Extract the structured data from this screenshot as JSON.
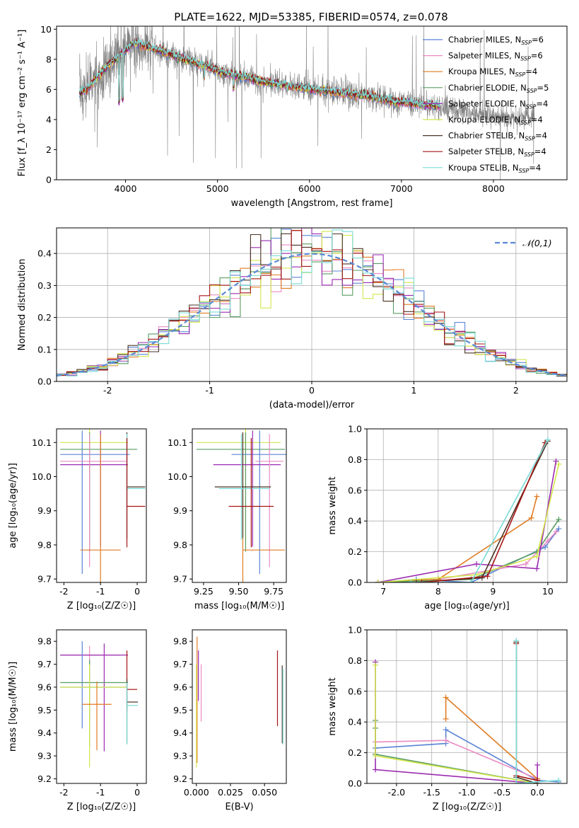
{
  "title": "PLATE=1622, MJD=53385, FIBERID=0574, z=0.078",
  "colors": {
    "Chabrier MILES": "#5b84d6",
    "Salpeter MILES": "#e98bc3",
    "Kroupa MILES": "#e07c24",
    "Chabrier ELODIE": "#5a9d63",
    "Salpeter ELODIE": "#9a2ab0",
    "Kroupa ELODIE": "#d4e64b",
    "Chabrier STELIB": "#4a3324",
    "Salpeter STELIB": "#a51515",
    "Kroupa STELIB": "#78dbd6",
    "data": "#808080"
  },
  "chart_data": [
    {
      "id": "spectrum",
      "type": "line",
      "xlabel": "wavelength [Angstrom, rest frame]",
      "ylabel": "Flux [f_λ 10⁻¹⁷ erg cm⁻² s⁻¹ A⁻¹]",
      "xlim": [
        3250,
        8800
      ],
      "ylim": [
        0,
        10.2
      ],
      "xticks": [
        4000,
        5000,
        6000,
        7000,
        8000
      ],
      "yticks": [
        0,
        2,
        4,
        6,
        8,
        10
      ],
      "legend": "top-right",
      "legend_entries": [
        {
          "name": "Chabrier MILES",
          "nssp": "6"
        },
        {
          "name": "Salpeter MILES",
          "nssp": "6"
        },
        {
          "name": "Kroupa MILES",
          "nssp": "4"
        },
        {
          "name": "Chabrier ELODIE",
          "nssp": "5"
        },
        {
          "name": "Salpeter ELODIE",
          "nssp": "4"
        },
        {
          "name": "Kroupa ELODIE",
          "nssp": "4"
        },
        {
          "name": "Chabrier STELIB",
          "nssp": "4"
        },
        {
          "name": "Salpeter STELIB",
          "nssp": "4"
        },
        {
          "name": "Kroupa STELIB",
          "nssp": "4"
        }
      ],
      "continuum": [
        [
          3500,
          5.8
        ],
        [
          3600,
          6.1
        ],
        [
          3700,
          6.8
        ],
        [
          3800,
          7.5
        ],
        [
          3900,
          8.0
        ],
        [
          4000,
          8.6
        ],
        [
          4100,
          9.1
        ],
        [
          4200,
          8.9
        ],
        [
          4300,
          8.7
        ],
        [
          4500,
          8.3
        ],
        [
          4700,
          7.9
        ],
        [
          4900,
          7.5
        ],
        [
          5100,
          7.0
        ],
        [
          5300,
          6.8
        ],
        [
          5500,
          6.5
        ],
        [
          5700,
          6.3
        ],
        [
          6000,
          6.0
        ],
        [
          6300,
          5.8
        ],
        [
          6600,
          5.6
        ],
        [
          6900,
          5.2
        ],
        [
          7200,
          5.0
        ],
        [
          7400,
          4.9
        ],
        [
          7600,
          4.6
        ],
        [
          7800,
          4.4
        ],
        [
          8000,
          4.2
        ],
        [
          8200,
          4.1
        ],
        [
          8400,
          4.2
        ]
      ],
      "model_range": [
        3500,
        7420
      ]
    },
    {
      "id": "residuals",
      "type": "step",
      "xlabel": "(data-model)/error",
      "ylabel": "Normed distribution",
      "xlim": [
        -2.5,
        2.5
      ],
      "ylim": [
        0,
        0.48
      ],
      "xticks": [
        -2,
        -1,
        0,
        1,
        2
      ],
      "yticks": [
        0.0,
        0.1,
        0.2,
        0.3,
        0.4
      ],
      "gauss_label": "𝒩(0,1)",
      "bin_width": 0.1
    },
    {
      "id": "age-vs-Z",
      "type": "errorbar",
      "xlabel": "Z [log₁₀(Z/Z☉)]",
      "ylabel": "age  [log₁₀(age/yr)]",
      "xlim": [
        -2.2,
        0.25
      ],
      "ylim": [
        9.69,
        10.14
      ],
      "xticks": [
        -2,
        -1,
        0
      ],
      "yticks": [
        9.7,
        9.8,
        9.9,
        10.0,
        10.1
      ],
      "points": [
        {
          "m": "Kroupa ELODIE",
          "x": -1.3,
          "xerr": [
            0.8,
            1.05
          ],
          "y": 10.1,
          "yerr": [
            0.3,
            0.05
          ]
        },
        {
          "m": "Chabrier MILES",
          "x": -1.5,
          "xerr": [
            0.6,
            1.3
          ],
          "y": 10.065,
          "yerr": [
            0.35,
            0.07
          ]
        },
        {
          "m": "Chabrier ELODIE",
          "x": -1.3,
          "xerr": [
            0.8,
            1.3
          ],
          "y": 10.08,
          "yerr": [
            0.3,
            0.05
          ]
        },
        {
          "m": "Salpeter ELODIE",
          "x": -1.0,
          "xerr": [
            1.1,
            0.75
          ],
          "y": 10.035,
          "yerr": [
            0.24,
            0.1
          ]
        },
        {
          "m": "Salpeter MILES",
          "x": -1.3,
          "xerr": [
            0.8,
            1.0
          ],
          "y": 10.045,
          "yerr": [
            0.31,
            0.08
          ]
        },
        {
          "m": "Kroupa MILES",
          "x": -1.0,
          "xerr": [
            0.55,
            0.55
          ],
          "y": 9.785,
          "yerr": [
            0.1,
            0.34
          ]
        },
        {
          "m": "Chabrier STELIB",
          "x": -0.28,
          "xerr": [
            0.0,
            0.5
          ],
          "y": 9.97,
          "yerr": [
            0.15,
            0.16
          ]
        },
        {
          "m": "Kroupa STELIB",
          "x": -0.28,
          "xerr": [
            0.0,
            0.5
          ],
          "y": 9.965,
          "yerr": [
            0.15,
            0.16
          ]
        },
        {
          "m": "Salpeter STELIB",
          "x": -0.28,
          "xerr": [
            0.0,
            0.5
          ],
          "y": 9.913,
          "yerr": [
            0.12,
            0.2
          ]
        }
      ]
    },
    {
      "id": "age-vs-mass",
      "type": "errorbar",
      "xlabel": "mass [log₁₀(M/M☉)]",
      "xlim": [
        9.17,
        9.84
      ],
      "ylim": [
        9.69,
        10.14
      ],
      "xticks": [
        9.25,
        9.5,
        9.75
      ],
      "yticks": [
        9.7,
        9.8,
        9.9,
        10.0,
        10.1
      ],
      "points": [
        {
          "m": "Kroupa ELODIE",
          "x": 9.55,
          "xerr": [
            0.35,
            0.25
          ],
          "y": 10.1,
          "yerr": [
            0.3,
            0.05
          ]
        },
        {
          "m": "Chabrier ELODIE",
          "x": 9.55,
          "xerr": [
            0.35,
            0.28
          ],
          "y": 10.08,
          "yerr": [
            0.3,
            0.05
          ]
        },
        {
          "m": "Chabrier MILES",
          "x": 9.65,
          "xerr": [
            0.2,
            0.2
          ],
          "y": 10.065,
          "yerr": [
            0.35,
            0.07
          ]
        },
        {
          "m": "Salpeter ELODIE",
          "x": 9.6,
          "xerr": [
            0.28,
            0.2
          ],
          "y": 10.035,
          "yerr": [
            0.24,
            0.1
          ]
        },
        {
          "m": "Salpeter MILES",
          "x": 9.72,
          "xerr": [
            0.1,
            0.1
          ],
          "y": 10.045,
          "yerr": [
            0.31,
            0.08
          ]
        },
        {
          "m": "Kroupa MILES",
          "x": 9.53,
          "xerr": [
            0.0,
            0.3
          ],
          "y": 9.785,
          "yerr": [
            0.1,
            0.34
          ]
        },
        {
          "m": "Chabrier STELIB",
          "x": 9.53,
          "xerr": [
            0.2,
            0.2
          ],
          "y": 9.97,
          "yerr": [
            0.15,
            0.16
          ]
        },
        {
          "m": "Kroupa STELIB",
          "x": 9.52,
          "xerr": [
            0.16,
            0.2
          ],
          "y": 9.965,
          "yerr": [
            0.15,
            0.16
          ]
        },
        {
          "m": "Salpeter STELIB",
          "x": 9.59,
          "xerr": [
            0.16,
            0.16
          ],
          "y": 9.913,
          "yerr": [
            0.12,
            0.2
          ]
        }
      ]
    },
    {
      "id": "weight-vs-age",
      "type": "line",
      "xlabel": "age  [log₁₀(age/yr)]",
      "ylabel": "mass weight",
      "xlim": [
        6.7,
        10.35
      ],
      "ylim": [
        0,
        1.0
      ],
      "xticks": [
        7,
        8,
        9,
        10
      ],
      "yticks": [
        0.0,
        0.2,
        0.4,
        0.6,
        0.8,
        1.0
      ],
      "series": [
        {
          "m": "Chabrier MILES",
          "points": [
            [
              6.9,
              0.0
            ],
            [
              7.6,
              0.02
            ],
            [
              8.6,
              0.0
            ],
            [
              9.95,
              0.23
            ],
            [
              10.2,
              0.35
            ]
          ]
        },
        {
          "m": "Salpeter MILES",
          "points": [
            [
              6.9,
              0.0
            ],
            [
              8.0,
              0.02
            ],
            [
              9.6,
              0.12
            ],
            [
              10.0,
              0.27
            ],
            [
              10.15,
              0.33
            ]
          ]
        },
        {
          "m": "Kroupa MILES",
          "points": [
            [
              6.9,
              0.0
            ],
            [
              8.0,
              0.02
            ],
            [
              9.7,
              0.42
            ],
            [
              9.8,
              0.56
            ]
          ]
        },
        {
          "m": "Chabrier ELODIE",
          "points": [
            [
              6.9,
              0.0
            ],
            [
              8.6,
              0.02
            ],
            [
              9.8,
              0.2
            ],
            [
              10.2,
              0.41
            ]
          ]
        },
        {
          "m": "Salpeter ELODIE",
          "points": [
            [
              6.9,
              0.0
            ],
            [
              8.7,
              0.12
            ],
            [
              9.8,
              0.09
            ],
            [
              10.15,
              0.79
            ]
          ]
        },
        {
          "m": "Kroupa ELODIE",
          "points": [
            [
              6.9,
              0.0
            ],
            [
              8.7,
              0.05
            ],
            [
              9.8,
              0.17
            ],
            [
              10.2,
              0.77
            ]
          ]
        },
        {
          "m": "Chabrier STELIB",
          "points": [
            [
              7.6,
              0.0
            ],
            [
              8.8,
              0.03
            ],
            [
              10.0,
              0.92
            ]
          ]
        },
        {
          "m": "Salpeter STELIB",
          "points": [
            [
              7.7,
              0.0
            ],
            [
              8.9,
              0.04
            ],
            [
              9.95,
              0.91
            ]
          ]
        },
        {
          "m": "Kroupa STELIB",
          "points": [
            [
              7.5,
              0.0
            ],
            [
              8.6,
              0.0
            ],
            [
              10.0,
              0.93
            ]
          ]
        }
      ]
    },
    {
      "id": "mass-vs-Z",
      "type": "errorbar",
      "xlabel": "Z [log₁₀(Z/Z☉)]",
      "ylabel": "mass [log₁₀(M/M☉)]",
      "xlim": [
        -2.2,
        0.25
      ],
      "ylim": [
        9.18,
        9.85
      ],
      "xticks": [
        -2,
        -1,
        0
      ],
      "yticks": [
        9.2,
        9.3,
        9.4,
        9.5,
        9.6,
        9.7,
        9.8
      ],
      "points": [
        {
          "m": "Salpeter MILES",
          "x": -1.3,
          "xerr": [
            0.8,
            0.8
          ],
          "y": 9.74,
          "yerr": [
            0.29,
            0.04
          ]
        },
        {
          "m": "Salpeter ELODIE",
          "x": -0.9,
          "xerr": [
            1.2,
            0.65
          ],
          "y": 9.74,
          "yerr": [
            0.42,
            0.05
          ]
        },
        {
          "m": "Chabrier MILES",
          "x": -1.5,
          "xerr": [
            0.6,
            1.2
          ],
          "y": 9.6,
          "yerr": [
            0.18,
            0.2
          ]
        },
        {
          "m": "Chabrier ELODIE",
          "x": -1.3,
          "xerr": [
            0.8,
            1.05
          ],
          "y": 9.62,
          "yerr": [
            0.28,
            0.1
          ]
        },
        {
          "m": "Kroupa ELODIE",
          "x": -1.3,
          "xerr": [
            0.8,
            1.0
          ],
          "y": 9.6,
          "yerr": [
            0.35,
            0.1
          ]
        },
        {
          "m": "Kroupa MILES",
          "x": -1.1,
          "xerr": [
            0.4,
            0.4
          ],
          "y": 9.525,
          "yerr": [
            0.2,
            0.1
          ]
        },
        {
          "m": "Salpeter STELIB",
          "x": -0.28,
          "xerr": [
            0.0,
            0.28
          ],
          "y": 9.59,
          "yerr": [
            0.1,
            0.17
          ]
        },
        {
          "m": "Chabrier STELIB",
          "x": -0.28,
          "xerr": [
            0.0,
            0.3
          ],
          "y": 9.535,
          "yerr": [
            0.18,
            0.1
          ]
        },
        {
          "m": "Kroupa STELIB",
          "x": -0.28,
          "xerr": [
            0.0,
            0.3
          ],
          "y": 9.52,
          "yerr": [
            0.17,
            0.1
          ]
        }
      ]
    },
    {
      "id": "mass-vs-ebv",
      "type": "errorbar",
      "xlabel": "E(B-V)",
      "xlim": [
        -0.003,
        0.066
      ],
      "ylim": [
        9.18,
        9.85
      ],
      "xticks": [
        0.0,
        0.025,
        0.05
      ],
      "yticks": [
        9.2,
        9.3,
        9.4,
        9.5,
        9.6,
        9.7,
        9.8
      ],
      "points": [
        {
          "m": "Kroupa MILES",
          "x": 0.0005,
          "y": 9.62,
          "yerr": [
            0.35,
            0.2
          ]
        },
        {
          "m": "Kroupa ELODIE",
          "x": 0.0,
          "y": 9.6,
          "yerr": [
            0.35,
            0.1
          ]
        },
        {
          "m": "Salpeter ELODIE",
          "x": 0.0015,
          "y": 9.74,
          "yerr": [
            0.2,
            0.02
          ]
        },
        {
          "m": "Salpeter MILES",
          "x": 0.0035,
          "y": 9.6,
          "yerr": [
            0.15,
            0.1
          ]
        },
        {
          "m": "Salpeter STELIB",
          "x": 0.0595,
          "y": 9.59,
          "yerr": [
            0.16,
            0.17
          ]
        },
        {
          "m": "Chabrier STELIB",
          "x": 0.063,
          "y": 9.535,
          "yerr": [
            0.18,
            0.16
          ]
        },
        {
          "m": "Kroupa STELIB",
          "x": 0.0635,
          "y": 9.52,
          "yerr": [
            0.17,
            0.16
          ]
        }
      ]
    },
    {
      "id": "weight-vs-Z",
      "type": "line",
      "xlabel": "Z [log₁₀(Z/Z☉)]",
      "ylabel": "mass weight",
      "xlim": [
        -2.42,
        0.42
      ],
      "ylim": [
        0,
        1.0
      ],
      "xticks": [
        -2.0,
        -1.5,
        -1.0,
        -0.5,
        0.0
      ],
      "yticks": [
        0.0,
        0.2,
        0.4,
        0.6,
        0.8,
        1.0
      ],
      "series": [
        {
          "m": "Chabrier MILES",
          "points": [
            [
              -2.3,
              0.23
            ],
            [
              -1.3,
              0.26
            ],
            [
              -1.3,
              0.35
            ],
            [
              0.0,
              0.02
            ],
            [
              0.3,
              0.01
            ]
          ]
        },
        {
          "m": "Salpeter MILES",
          "points": [
            [
              -2.3,
              0.27
            ],
            [
              -1.3,
              0.28
            ],
            [
              0.0,
              0.03
            ]
          ]
        },
        {
          "m": "Kroupa MILES",
          "points": [
            [
              -1.3,
              0.42
            ],
            [
              -1.3,
              0.56
            ],
            [
              0.0,
              0.03
            ]
          ]
        },
        {
          "m": "Chabrier ELODIE",
          "points": [
            [
              -2.3,
              0.41
            ],
            [
              -2.3,
              0.36
            ],
            [
              -2.3,
              0.19
            ],
            [
              0.0,
              0.0
            ]
          ]
        },
        {
          "m": "Salpeter ELODIE",
          "points": [
            [
              -2.3,
              0.79
            ],
            [
              -2.3,
              0.09
            ],
            [
              0.0,
              0.0
            ],
            [
              0.0,
              0.12
            ]
          ]
        },
        {
          "m": "Kroupa ELODIE",
          "points": [
            [
              -2.3,
              0.77
            ],
            [
              -2.3,
              0.18
            ],
            [
              0.0,
              0.0
            ]
          ]
        },
        {
          "m": "Chabrier STELIB",
          "points": [
            [
              -0.3,
              0.92
            ],
            [
              -0.3,
              0.04
            ],
            [
              0.0,
              0.0
            ]
          ]
        },
        {
          "m": "Salpeter STELIB",
          "points": [
            [
              -0.3,
              0.91
            ],
            [
              -0.3,
              0.05
            ],
            [
              0.0,
              0.02
            ]
          ]
        },
        {
          "m": "Kroupa STELIB",
          "points": [
            [
              -0.3,
              0.93
            ],
            [
              -0.3,
              0.0
            ],
            [
              0.3,
              0.02
            ]
          ]
        }
      ]
    }
  ]
}
